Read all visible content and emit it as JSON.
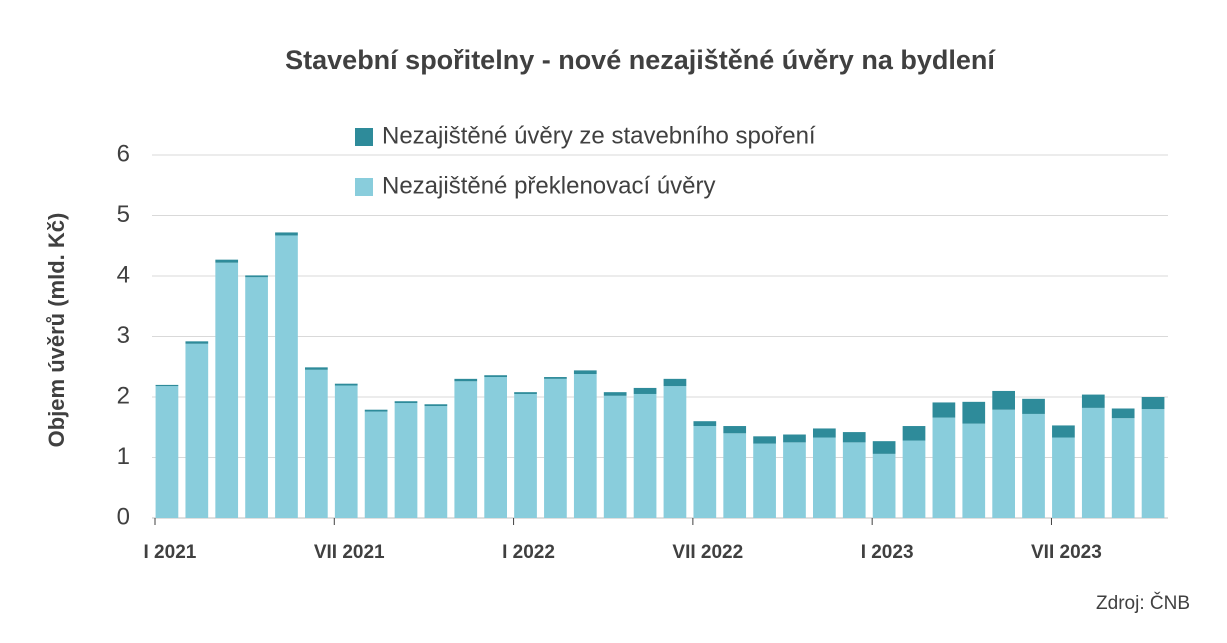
{
  "chart_data": {
    "type": "stacked_bar",
    "title": "Stavební spořitelny - nové nezajištěné úvěry na bydlení",
    "y_label": "Objem úvěrů (mld. Kč)",
    "source": "Zdroj: ČNB",
    "categories": [
      "I 2021",
      null,
      null,
      null,
      null,
      null,
      "VII 2021",
      null,
      null,
      null,
      null,
      null,
      "I 2022",
      null,
      null,
      null,
      null,
      null,
      "VII 2022",
      null,
      null,
      null,
      null,
      null,
      "I 2023",
      null,
      null,
      null,
      null,
      null,
      "VII 2023",
      null,
      null,
      null
    ],
    "series": [
      {
        "name": "Nezajištěné překlenovací úvěry",
        "color": "#89cddc",
        "values": [
          2.18,
          2.88,
          4.22,
          3.98,
          4.67,
          2.45,
          2.19,
          1.76,
          1.9,
          1.85,
          2.26,
          2.33,
          2.05,
          2.3,
          2.38,
          2.02,
          2.05,
          2.18,
          1.52,
          1.4,
          1.23,
          1.25,
          1.33,
          1.25,
          1.06,
          1.28,
          1.66,
          1.56,
          1.79,
          1.72,
          1.33,
          1.82,
          1.65,
          1.8
        ]
      },
      {
        "name": "Nezajištěné úvěry ze stavebního spoření",
        "color": "#2e8b9a",
        "values": [
          0.02,
          0.04,
          0.05,
          0.03,
          0.05,
          0.04,
          0.03,
          0.03,
          0.03,
          0.03,
          0.04,
          0.03,
          0.03,
          0.03,
          0.06,
          0.06,
          0.1,
          0.12,
          0.08,
          0.12,
          0.12,
          0.13,
          0.15,
          0.17,
          0.21,
          0.24,
          0.25,
          0.36,
          0.31,
          0.25,
          0.2,
          0.22,
          0.16,
          0.2
        ]
      }
    ],
    "ylim": [
      0,
      6
    ],
    "yticks": [
      0,
      1,
      2,
      3,
      4,
      5,
      6
    ],
    "grid": true
  }
}
